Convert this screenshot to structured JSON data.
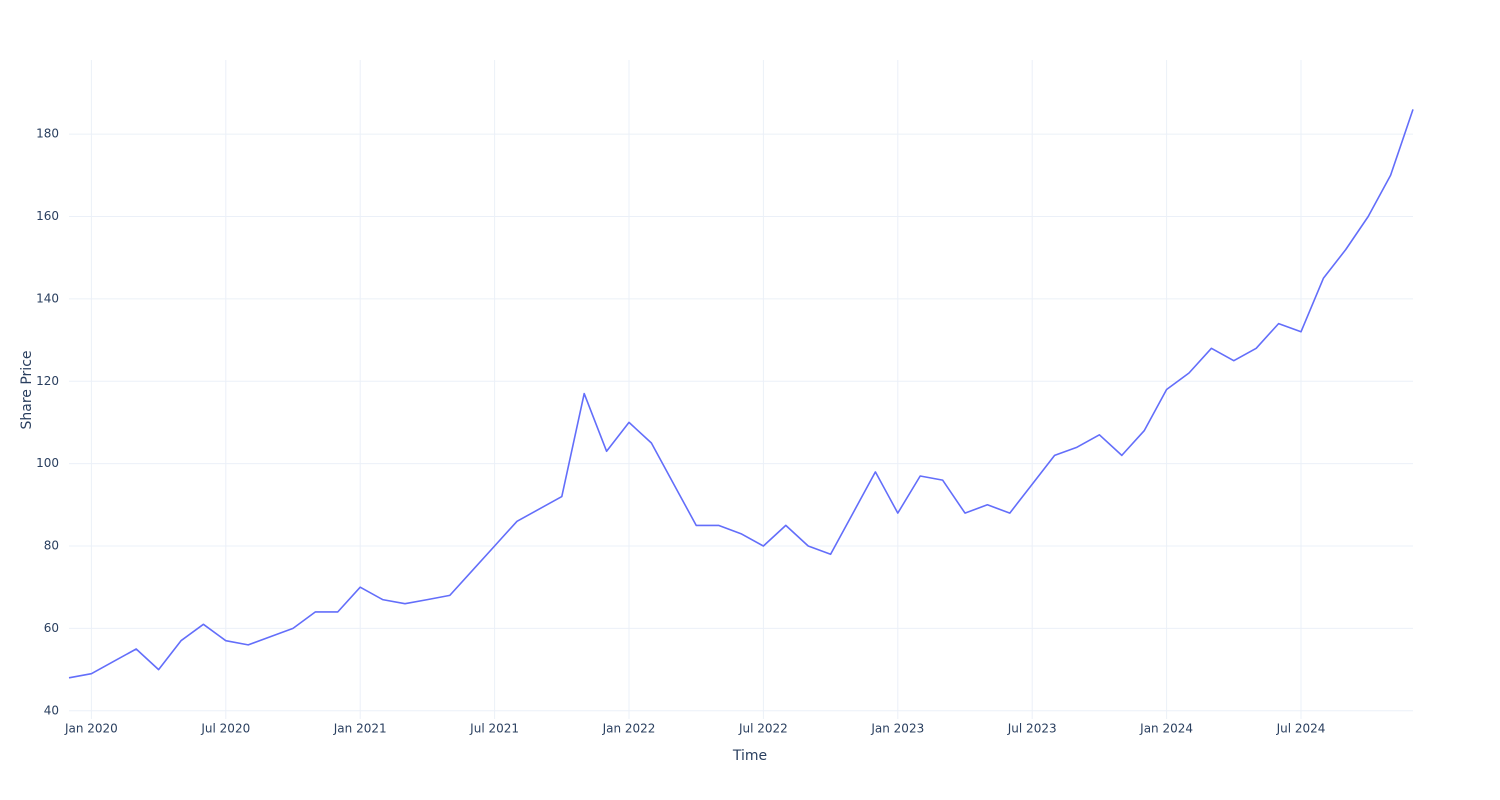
{
  "chart_data": {
    "type": "line",
    "x_label": "Time",
    "y_label": "Share Price",
    "x": [
      "2019-12",
      "2020-01",
      "2020-02",
      "2020-03",
      "2020-04",
      "2020-05",
      "2020-06",
      "2020-07",
      "2020-08",
      "2020-09",
      "2020-10",
      "2020-11",
      "2020-12",
      "2021-01",
      "2021-02",
      "2021-03",
      "2021-04",
      "2021-05",
      "2021-06",
      "2021-07",
      "2021-08",
      "2021-09",
      "2021-10",
      "2021-11",
      "2021-12",
      "2022-01",
      "2022-02",
      "2022-03",
      "2022-04",
      "2022-05",
      "2022-06",
      "2022-07",
      "2022-08",
      "2022-09",
      "2022-10",
      "2022-11",
      "2022-12",
      "2023-01",
      "2023-02",
      "2023-03",
      "2023-04",
      "2023-05",
      "2023-06",
      "2023-07",
      "2023-08",
      "2023-09",
      "2023-10",
      "2023-11",
      "2023-12",
      "2024-01",
      "2024-02",
      "2024-03",
      "2024-04",
      "2024-05",
      "2024-06",
      "2024-07",
      "2024-08",
      "2024-09",
      "2024-10",
      "2024-11",
      "2024-12"
    ],
    "series": [
      {
        "name": "Share Price",
        "color": "#636efa",
        "values": [
          48,
          49,
          52,
          55,
          50,
          57,
          61,
          57,
          56,
          58,
          60,
          64,
          64,
          70,
          67,
          66,
          67,
          68,
          74,
          80,
          86,
          89,
          92,
          117,
          103,
          110,
          105,
          95,
          85,
          85,
          83,
          80,
          85,
          80,
          78,
          88,
          98,
          88,
          97,
          96,
          88,
          90,
          88,
          95,
          102,
          104,
          107,
          102,
          108,
          118,
          122,
          128,
          125,
          128,
          134,
          132,
          145,
          152,
          160,
          170,
          186
        ]
      }
    ],
    "xlim": [
      "2019-12",
      "2024-12"
    ],
    "xticks": [
      {
        "value": "2020-01",
        "label": "Jan 2020"
      },
      {
        "value": "2020-07",
        "label": "Jul 2020"
      },
      {
        "value": "2021-01",
        "label": "Jan 2021"
      },
      {
        "value": "2021-07",
        "label": "Jul 2021"
      },
      {
        "value": "2022-01",
        "label": "Jan 2022"
      },
      {
        "value": "2022-07",
        "label": "Jul 2022"
      },
      {
        "value": "2023-01",
        "label": "Jan 2023"
      },
      {
        "value": "2023-07",
        "label": "Jul 2023"
      },
      {
        "value": "2024-01",
        "label": "Jan 2024"
      },
      {
        "value": "2024-07",
        "label": "Jul 2024"
      }
    ],
    "ylim": [
      38,
      198
    ],
    "yticks": [
      40,
      60,
      80,
      100,
      120,
      140,
      160,
      180
    ],
    "grid": true
  }
}
